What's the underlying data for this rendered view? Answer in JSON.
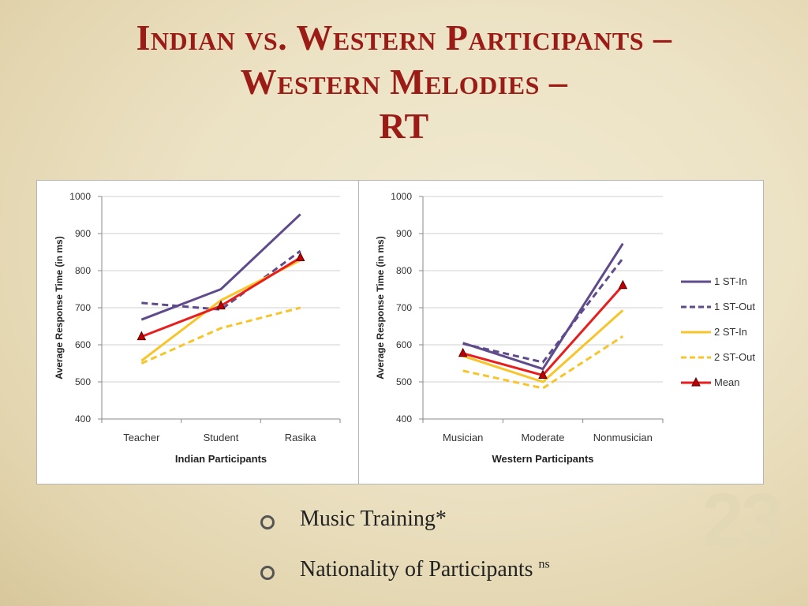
{
  "slide": {
    "title_line1": "Indian vs. Western Participants –",
    "title_line2": "Western Melodies –",
    "title_line3": "RT",
    "slide_number": "23",
    "bullets": [
      {
        "text": "Music Training*",
        "sup": ""
      },
      {
        "text": "Nationality of Participants ",
        "sup": "ns"
      }
    ]
  },
  "legend": [
    {
      "name": "1 ST-In",
      "color": "#5f4b8b",
      "dash": false,
      "marker": false
    },
    {
      "name": "1 ST-Out",
      "color": "#5f4b8b",
      "dash": true,
      "marker": false
    },
    {
      "name": "2 ST-In",
      "color": "#f7c52a",
      "dash": false,
      "marker": false
    },
    {
      "name": "2 ST-Out",
      "color": "#f7c52a",
      "dash": true,
      "marker": false
    },
    {
      "name": "Mean",
      "color": "#e81e1e",
      "dash": false,
      "marker": true
    }
  ],
  "chart_data": [
    {
      "type": "line",
      "categories": [
        "Teacher",
        "Student",
        "Rasika"
      ],
      "xlabel": "Indian Participants",
      "ylabel": "Average Response Time (in ms)",
      "ylim": [
        400,
        1000
      ],
      "yticks": [
        400,
        500,
        600,
        700,
        800,
        900,
        1000
      ],
      "grid": true,
      "series": [
        {
          "name": "1 ST-In",
          "values": [
            668,
            750,
            952
          ]
        },
        {
          "name": "1 ST-Out",
          "values": [
            713,
            695,
            853
          ]
        },
        {
          "name": "2 ST-In",
          "values": [
            557,
            720,
            828
          ]
        },
        {
          "name": "2 ST-Out",
          "values": [
            550,
            645,
            700
          ]
        },
        {
          "name": "Mean",
          "values": [
            622,
            705,
            835
          ]
        }
      ]
    },
    {
      "type": "line",
      "categories": [
        "Musician",
        "Moderate",
        "Nonmusician"
      ],
      "xlabel": "Western Participants",
      "ylabel": "Average Response Time (in ms)",
      "ylim": [
        400,
        1000
      ],
      "yticks": [
        400,
        500,
        600,
        700,
        800,
        900,
        1000
      ],
      "grid": true,
      "legend_position": "right",
      "series": [
        {
          "name": "1 ST-In",
          "values": [
            605,
            535,
            873
          ]
        },
        {
          "name": "1 ST-Out",
          "values": [
            603,
            553,
            833
          ]
        },
        {
          "name": "2 ST-In",
          "values": [
            570,
            500,
            693
          ]
        },
        {
          "name": "2 ST-Out",
          "values": [
            530,
            483,
            623
          ]
        },
        {
          "name": "Mean",
          "values": [
            577,
            518,
            760
          ]
        }
      ]
    }
  ]
}
